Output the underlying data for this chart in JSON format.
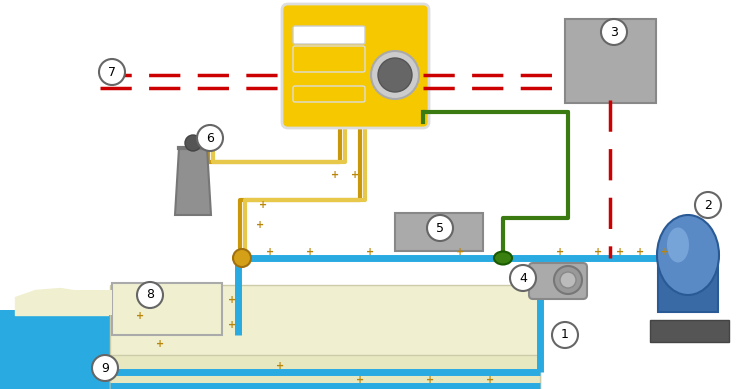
{
  "bg_color": "#ffffff",
  "figsize": [
    7.42,
    3.89
  ],
  "dpi": 100,
  "pipe_blue": "#29abe2",
  "pipe_gold": "#c8980a",
  "pipe_gold_light": "#e8c84a",
  "pipe_green": "#3a7a10",
  "pipe_red_dash": "#cc0000",
  "pool_water_color": "#29abe2",
  "device_yellow": "#f5c800",
  "device_gray": "#999999",
  "device_gray2": "#aaaaaa",
  "device_blue_dark": "#3a6aa5",
  "device_blue_light": "#5a8ac5",
  "plus_color": "#b8860b",
  "label_edge": "#666666",
  "pump_gray": "#888888",
  "pool_beige": "#f0f0d0",
  "pool_beige2": "#e8e8c0",
  "canister_gray": "#909090",
  "green_dot": "#3a8010",
  "gold_dot": "#d4a017"
}
